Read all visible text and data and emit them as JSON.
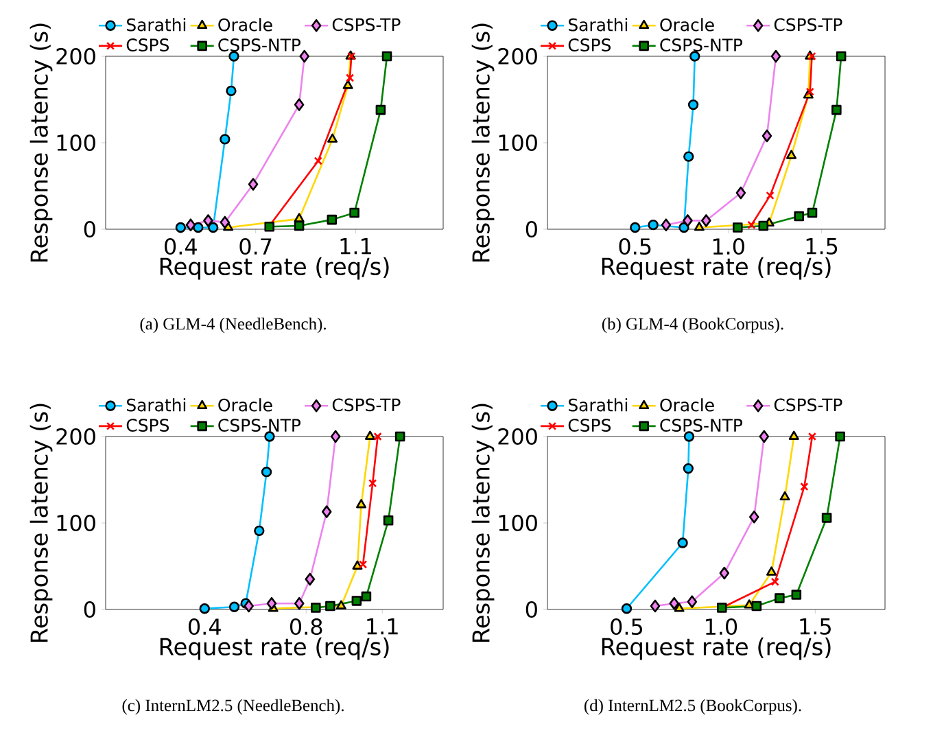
{
  "chart_data": [
    {
      "type": "line",
      "xlabel": "Request rate (req/s)",
      "ylabel": "Response latency (s)",
      "legend": "top",
      "annotations": [
        "(a)  GLM-4 (NeedleBench)."
      ],
      "xlim": [
        0.1,
        1.45
      ],
      "ylim": [
        0,
        200
      ],
      "xticks": [
        0.4,
        0.7,
        1.1
      ],
      "yticks": [
        0,
        100,
        200
      ],
      "series": [
        {
          "name": "Sarathi",
          "color": "#00bfff",
          "marker": "circle",
          "x": [
            0.4,
            0.47,
            0.53,
            0.577,
            0.602,
            0.613
          ],
          "values": [
            2,
            2,
            2,
            104,
            160,
            200
          ]
        },
        {
          "name": "Oracle",
          "color": "#ffd700",
          "marker": "triangle",
          "x": [
            0.59,
            0.755,
            0.874,
            1.007,
            1.069,
            1.08
          ],
          "values": [
            2,
            null,
            12,
            104,
            166,
            200
          ]
        },
        {
          "name": "CSPS-TP",
          "color": "#ee82ee",
          "marker": "diamond",
          "x": [
            0.44,
            0.51,
            0.577,
            0.69,
            0.874,
            0.895
          ],
          "values": [
            5,
            10,
            8,
            52,
            144,
            200
          ]
        },
        {
          "name": "CSPS",
          "color": "#ff0000",
          "marker": "cross",
          "x": [
            0.755,
            0.95,
            1.077,
            1.083
          ],
          "values": [
            4,
            79,
            175,
            200
          ]
        },
        {
          "name": "CSPS-NTP",
          "color": "#008000",
          "marker": "square",
          "x": [
            0.755,
            0.874,
            1.005,
            1.095,
            1.2,
            1.225
          ],
          "values": [
            3,
            4,
            11,
            19,
            138,
            200
          ]
        }
      ]
    },
    {
      "type": "line",
      "xlabel": "Request rate (req/s)",
      "ylabel": "Response latency (s)",
      "legend": "top",
      "annotations": [
        "(b)  GLM-4 (BookCorpus)."
      ],
      "xlim": [
        0.03,
        1.84
      ],
      "ylim": [
        0,
        200
      ],
      "xticks": [
        0.5,
        {
          "value": 1.0,
          "label": "1.0"
        },
        1.5
      ],
      "yticks": [
        0,
        100,
        200
      ],
      "series": [
        {
          "name": "Sarathi",
          "color": "#00bfff",
          "marker": "circle",
          "x": [
            0.5,
            0.597,
            0.762,
            0.787,
            0.812,
            0.82
          ],
          "values": [
            2,
            5,
            2,
            84,
            144,
            200
          ]
        },
        {
          "name": "Oracle",
          "color": "#ffd700",
          "marker": "triangle",
          "x": [
            0.844,
            1.05,
            1.219,
            1.338,
            1.429,
            1.438
          ],
          "values": [
            2,
            null,
            7,
            85,
            155,
            200
          ]
        },
        {
          "name": "CSPS-TP",
          "color": "#ee82ee",
          "marker": "diamond",
          "x": [
            0.666,
            0.782,
            0.881,
            1.067,
            1.207,
            1.255
          ],
          "values": [
            5,
            10,
            10,
            42,
            108,
            200
          ]
        },
        {
          "name": "CSPS",
          "color": "#ff0000",
          "marker": "cross",
          "x": [
            1.124,
            1.224,
            1.438,
            1.448
          ],
          "values": [
            5,
            39,
            159,
            200
          ]
        },
        {
          "name": "CSPS-NTP",
          "color": "#008000",
          "marker": "square",
          "x": [
            1.05,
            1.188,
            1.379,
            1.45,
            1.58,
            1.605
          ],
          "values": [
            2,
            4,
            15,
            19,
            138,
            200
          ]
        }
      ]
    },
    {
      "type": "line",
      "xlabel": "Request rate (req/s)",
      "ylabel": "Response latency (s)",
      "legend": "top",
      "annotations": [
        "(c)  InternLM2.5 (NeedleBench)."
      ],
      "xlim": [
        0.01,
        1.34
      ],
      "ylim": [
        0,
        200
      ],
      "xticks": [
        0.4,
        0.8,
        1.1
      ],
      "yticks": [
        0,
        100,
        200
      ],
      "series": [
        {
          "name": "Sarathi",
          "color": "#00bfff",
          "marker": "circle",
          "x": [
            0.4,
            0.517,
            0.562,
            0.615,
            0.644,
            0.656
          ],
          "values": [
            1,
            3,
            7,
            91,
            159,
            200
          ]
        },
        {
          "name": "Oracle",
          "color": "#ffd700",
          "marker": "triangle",
          "x": [
            0.67,
            0.938,
            1.002,
            1.017,
            1.052
          ],
          "values": [
            1,
            4,
            50,
            121,
            200
          ]
        },
        {
          "name": "CSPS-TP",
          "color": "#ee82ee",
          "marker": "diamond",
          "x": [
            0.574,
            0.664,
            0.773,
            0.815,
            0.881,
            0.916
          ],
          "values": [
            4,
            7,
            7,
            35,
            113,
            200
          ]
        },
        {
          "name": "CSPS",
          "color": "#ff0000",
          "marker": "cross",
          "x": [
            1.024,
            1.062,
            1.082
          ],
          "values": [
            52,
            146,
            200
          ]
        },
        {
          "name": "CSPS-NTP",
          "color": "#008000",
          "marker": "square",
          "x": [
            0.838,
            0.895,
            0.999,
            1.037,
            1.124,
            1.17
          ],
          "values": [
            2,
            4,
            10,
            15,
            103,
            200
          ]
        }
      ]
    },
    {
      "type": "line",
      "xlabel": "Request rate (req/s)",
      "ylabel": "Response latency (s)",
      "legend": "top",
      "annotations": [
        "(d)  InternLM2.5 (BookCorpus)."
      ],
      "xlim": [
        0.08,
        1.87
      ],
      "ylim": [
        0,
        200
      ],
      "xticks": [
        0.5,
        {
          "value": 1.0,
          "label": "1.0"
        },
        1.5
      ],
      "yticks": [
        0,
        100,
        200
      ],
      "series": [
        {
          "name": "Sarathi",
          "color": "#00bfff",
          "marker": "circle",
          "x": [
            0.5,
            0.797,
            0.827,
            0.831
          ],
          "values": [
            1,
            77,
            163,
            200
          ]
        },
        {
          "name": "Oracle",
          "color": "#ffd700",
          "marker": "triangle",
          "x": [
            0.779,
            1.15,
            1.268,
            1.339,
            1.387
          ],
          "values": [
            1,
            5,
            43,
            130,
            200
          ]
        },
        {
          "name": "CSPS-TP",
          "color": "#ee82ee",
          "marker": "diamond",
          "x": [
            0.651,
            0.752,
            0.847,
            1.018,
            1.176,
            1.229
          ],
          "values": [
            4,
            7,
            9,
            42,
            107,
            200
          ]
        },
        {
          "name": "CSPS",
          "color": "#ff0000",
          "marker": "cross",
          "x": [
            1.005,
            1.163,
            1.287,
            1.442,
            1.484
          ],
          "values": [
            2,
            null,
            32,
            142,
            200
          ]
        },
        {
          "name": "CSPS-NTP",
          "color": "#008000",
          "marker": "square",
          "x": [
            1.005,
            1.189,
            1.311,
            1.4,
            1.561,
            1.632
          ],
          "values": [
            2,
            4,
            13,
            17,
            106,
            200
          ]
        }
      ]
    }
  ]
}
